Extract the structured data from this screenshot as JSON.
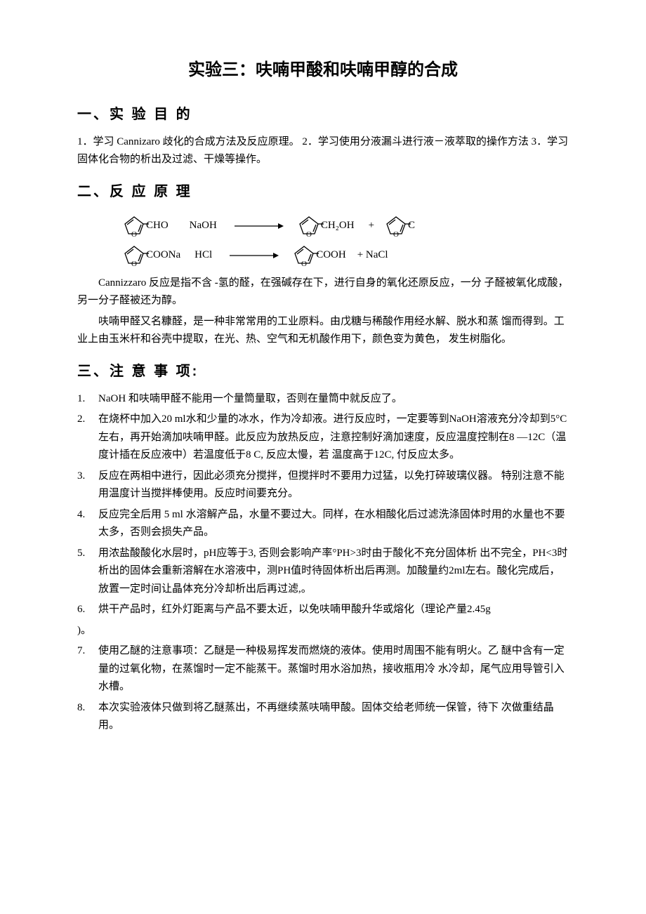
{
  "title": "实验三：呋喃甲酸和呋喃甲醇的合成",
  "section1": {
    "heading": "一、实 验 目 的",
    "text": "1．学习 Cannizaro 歧化的合成方法及反应原理。 2．学习使用分液漏斗进行液－液萃取的操作方法 3．学习固体化合物的析出及过滤、干燥等操作。"
  },
  "section2": {
    "heading": "二、反 应 原 理",
    "rx1": {
      "reagent": "NaOH",
      "sub1": "CHO",
      "prod1": "CH₂OH",
      "plus": "+",
      "prod2": "C"
    },
    "rx2": {
      "sub1": "COONa",
      "reagent": "HCl",
      "prod1": "COOH",
      "plus": "+ NaCl"
    },
    "para1": "Cannizzaro 反应是指不含 -氢的醛，在强碱存在下，进行自身的氧化还原反应，一分 子醛被氧化成酸，另一分子醛被还为醇。",
    "para2": "呋喃甲醛又名糠醛，是一种非常常用的工业原料。由戊糖与稀酸作用经水解、脱水和蒸 馏而得到。工业上由玉米杆和谷壳中提取，在光、热、空气和无机酸作用下，颜色变为黄色， 发生树脂化。"
  },
  "section3": {
    "heading": "三、注 意 事 项:",
    "items": [
      {
        "n": "1.",
        "t": "NaOH 和呋喃甲醛不能用一个量筒量取，否则在量筒中就反应了。"
      },
      {
        "n": "2.",
        "t": "在烧杯中加入20 ml水和少量的冰水，作为冷却液。进行反应时，一定要等到NaOH溶液充分冷却到5°C左右，再开始滴加呋喃甲醛。此反应为放热反应，注意控制好滴加速度，反应温度控制在8 —12C（温度计插在反应液中）若温度低于8 C, 反应太慢，若 温度高于12C, 付反应太多。"
      },
      {
        "n": "3.",
        "t": "反应在两相中进行，因此必须充分搅拌，但搅拌时不要用力过猛，以免打碎玻璃仪器。 特别注意不能用温度计当搅拌棒使用。反应时间要充分。"
      },
      {
        "n": "4.",
        "t": "反应完全后用 5 ml 水溶解产品，水量不要过大。同样，在水相酸化后过滤洗涤固体时用的水量也不要太多，否则会损失产品。"
      },
      {
        "n": "5.",
        "t": "用浓盐酸酸化水层时，pH应等于3, 否则会影响产率°PH>3时由于酸化不充分固体析 出不完全，PH<3时析出的固体会重新溶解在水溶液中，测PH值时待固体析出后再测。加酸量约2ml左右。酸化完成后，放置一定时间让晶体充分冷却析出后再过滤,。"
      },
      {
        "n": "6.",
        "t": "烘干产品时，红外灯距离与产品不要太近，以免呋喃甲酸升华或熔化（理论产量2.45g"
      },
      {
        "n": "",
        "t": ")。",
        "flat": true
      },
      {
        "n": "7.",
        "t": "使用乙醚的注意事项：乙醚是一种极易挥发而燃烧的液体。使用时周围不能有明火。乙 醚中含有一定量的过氧化物，在蒸馏时一定不能蒸干。蒸馏时用水浴加热，接收瓶用冷 水冷却，尾气应用导管引入水槽。"
      },
      {
        "n": "8.",
        "t": "本次实验液体只做到将乙醚蒸出，不再继续蒸呋喃甲酸。固体交给老师统一保管，待下 次做重结晶用。"
      }
    ]
  }
}
